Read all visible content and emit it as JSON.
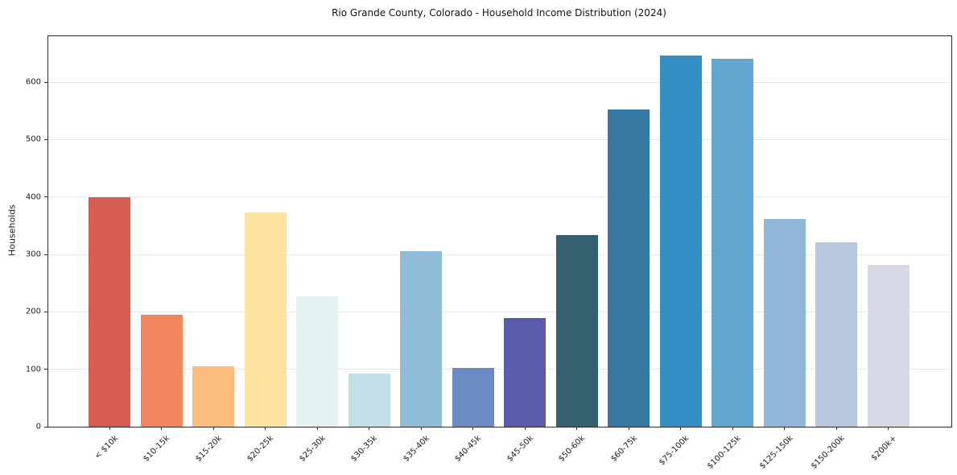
{
  "chart_data": {
    "type": "bar",
    "title": "Rio Grande County, Colorado - Household Income Distribution (2024)",
    "xlabel": "",
    "ylabel": "Households",
    "categories": [
      "< $10k",
      "$10-15k",
      "$15-20k",
      "$20-25k",
      "$25-30k",
      "$30-35k",
      "$35-40k",
      "$40-45k",
      "$45-50k",
      "$50-60k",
      "$60-75k",
      "$75-100k",
      "$100-125k",
      "$125-150k",
      "$150-200k",
      "$200k+"
    ],
    "values": [
      399,
      195,
      105,
      373,
      227,
      92,
      305,
      103,
      190,
      334,
      553,
      647,
      641,
      362,
      321,
      282
    ],
    "bar_colors": [
      "#d65b50",
      "#f2875f",
      "#fabd7e",
      "#fde3a2",
      "#e6f1f2",
      "#c2dfe8",
      "#90bcd9",
      "#6b8cc2",
      "#5a5cab",
      "#34606f",
      "#36789f",
      "#338fc4",
      "#61a7ce",
      "#92b8d9",
      "#b7c7df",
      "#d7d9e6"
    ],
    "ylim": [
      0,
      680
    ],
    "yticks": [
      0,
      100,
      200,
      300,
      400,
      500,
      600
    ],
    "grid": "horizontal-only",
    "legend": "none",
    "background_color": "#ffffff",
    "plot_border_color": "#2a2a2a",
    "gridline_color": "#e9e9e9"
  }
}
